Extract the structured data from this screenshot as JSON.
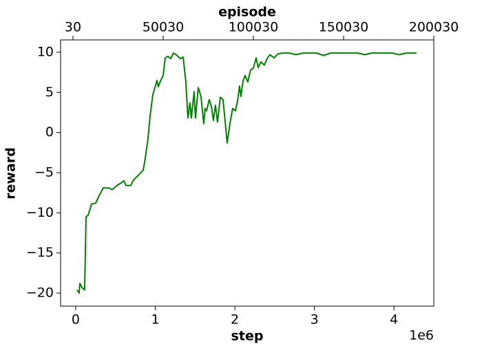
{
  "chart_data": {
    "type": "line",
    "xlabel": "step",
    "ylabel": "reward",
    "x2label": "episode",
    "xoffset_label": "1e6",
    "color": "#008000",
    "x": [
      17000,
      43000,
      52000,
      78000,
      112000,
      130000,
      156000,
      199000,
      251000,
      303000,
      346000,
      415000,
      459000,
      519000,
      580000,
      606000,
      632000,
      692000,
      727000,
      779000,
      848000,
      874000,
      908000,
      934000,
      969000,
      1021000,
      1038000,
      1064000,
      1099000,
      1125000,
      1159000,
      1194000,
      1228000,
      1263000,
      1315000,
      1350000,
      1384000,
      1410000,
      1436000,
      1453000,
      1488000,
      1505000,
      1540000,
      1574000,
      1609000,
      1626000,
      1644000,
      1678000,
      1704000,
      1730000,
      1756000,
      1782000,
      1817000,
      1851000,
      1877000,
      1903000,
      1938000,
      1972000,
      2007000,
      2033000,
      2059000,
      2076000,
      2102000,
      2128000,
      2163000,
      2197000,
      2232000,
      2267000,
      2293000,
      2327000,
      2370000,
      2405000,
      2440000,
      2491000,
      2543000,
      2595000,
      2682000,
      2768000,
      2855000,
      3028000,
      3114000,
      3201000,
      3547000,
      3633000,
      3720000,
      3979000,
      4066000,
      4152000,
      4282000
    ],
    "values": [
      -19.6,
      -20,
      -18.8,
      -19.3,
      -19.6,
      -10.5,
      -10.3,
      -8.9,
      -8.8,
      -7.7,
      -6.9,
      -6.9,
      -7.1,
      -6.6,
      -6.2,
      -6.0,
      -6.6,
      -6.6,
      -5.9,
      -5.4,
      -4.7,
      -3.2,
      -0.8,
      2.0,
      4.7,
      6.5,
      5.7,
      6.4,
      7.1,
      9.3,
      9.5,
      9.2,
      9.9,
      9.7,
      9.2,
      9.4,
      6.3,
      1.8,
      3.7,
      1.8,
      5.1,
      1.8,
      5.6,
      4.5,
      1.1,
      3.0,
      2.7,
      4.1,
      3.3,
      1.5,
      3.4,
      1.3,
      4.4,
      4.1,
      1.5,
      -1.3,
      1.1,
      3.0,
      2.7,
      3.9,
      5.8,
      4.5,
      6.4,
      7.1,
      6.3,
      7.8,
      8.0,
      9.3,
      8.1,
      8.8,
      8.4,
      9.2,
      9.7,
      9.3,
      9.8,
      9.9,
      9.9,
      9.7,
      9.9,
      9.9,
      9.6,
      9.9,
      9.9,
      9.7,
      9.9,
      9.9,
      9.7,
      9.9,
      9.9
    ],
    "xlim": [
      -190000,
      4500000
    ],
    "xticks": [
      {
        "value": 0,
        "label": "0"
      },
      {
        "value": 1000000,
        "label": "1"
      },
      {
        "value": 2000000,
        "label": "2"
      },
      {
        "value": 3000000,
        "label": "3"
      },
      {
        "value": 4000000,
        "label": "4"
      }
    ],
    "ylim": [
      -21.63,
      11.54
    ],
    "yticks": [
      {
        "value": -20,
        "label": "−20"
      },
      {
        "value": -15,
        "label": "−15"
      },
      {
        "value": -10,
        "label": "−10"
      },
      {
        "value": -5,
        "label": "−5"
      },
      0,
      5,
      10
    ],
    "x2lim": [
      -6840,
      200030
    ],
    "x2ticks": [
      30,
      50030,
      100030,
      150030,
      200030
    ]
  }
}
